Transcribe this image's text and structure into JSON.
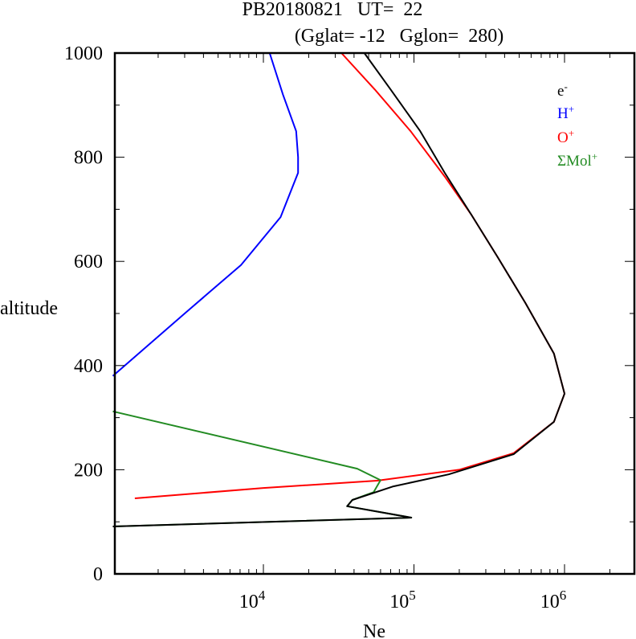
{
  "chart_data": {
    "type": "line",
    "title_line1": "PB20180821   UT=  22",
    "title_line2": "(Gglat= -12   Gglon=  280)",
    "xlabel": "Ne",
    "ylabel": "altitude",
    "xscale": "log",
    "xlim": [
      1000,
      3000000
    ],
    "ylim": [
      0,
      1000
    ],
    "x_tick_labels": [
      {
        "base": "10",
        "exp": "4",
        "value": 10000
      },
      {
        "base": "10",
        "exp": "5",
        "value": 100000
      },
      {
        "base": "10",
        "exp": "6",
        "value": 1000000
      }
    ],
    "y_ticks": [
      0,
      200,
      400,
      600,
      800,
      1000
    ],
    "y_tick_labels": [
      "0",
      "200",
      "400",
      "600",
      "800",
      "1000"
    ],
    "y_minor_ticks": [
      100,
      300,
      500,
      700,
      900
    ],
    "grid": false,
    "legend_position": "top-right",
    "series": [
      {
        "name": "e-",
        "label_base": "e",
        "label_sup": "-",
        "color": "#000000",
        "points": [
          [
            46800,
            1000
          ],
          [
            70000,
            930
          ],
          [
            110000,
            850
          ],
          [
            160000,
            770
          ],
          [
            240000,
            690
          ],
          [
            360000,
            608
          ],
          [
            550000,
            520
          ],
          [
            850000,
            423
          ],
          [
            1000000,
            346
          ],
          [
            850000,
            292
          ],
          [
            460000,
            230
          ],
          [
            170000,
            191
          ],
          [
            73000,
            168
          ],
          [
            39000,
            142
          ],
          [
            36000,
            130
          ],
          [
            96000,
            108
          ],
          [
            1000,
            91
          ]
        ]
      },
      {
        "name": "H+",
        "label_base": "H",
        "label_sup": "+",
        "color": "#0000ff",
        "points": [
          [
            11000,
            1000
          ],
          [
            13500,
            920
          ],
          [
            16500,
            850
          ],
          [
            17000,
            800
          ],
          [
            17000,
            770
          ],
          [
            13000,
            685
          ],
          [
            7100,
            593
          ],
          [
            3000,
            500
          ],
          [
            1000,
            380
          ]
        ]
      },
      {
        "name": "O+",
        "label_base": "O",
        "label_sup": "+",
        "color": "#ff0000",
        "points": [
          [
            33000,
            1000
          ],
          [
            55000,
            930
          ],
          [
            95000,
            850
          ],
          [
            160000,
            763
          ],
          [
            240000,
            690
          ],
          [
            360000,
            608
          ],
          [
            550000,
            520
          ],
          [
            850000,
            423
          ],
          [
            1000000,
            346
          ],
          [
            850000,
            292
          ],
          [
            460000,
            232
          ],
          [
            200000,
            200
          ],
          [
            57000,
            179
          ],
          [
            10000,
            165
          ],
          [
            1400,
            145
          ]
        ]
      },
      {
        "name": "ΣMol+",
        "label_base": "ΣMol",
        "label_sup": "+",
        "color": "#228b22",
        "points": [
          [
            1000,
            312
          ],
          [
            42000,
            202
          ],
          [
            60000,
            180
          ],
          [
            54000,
            157
          ],
          [
            39000,
            142
          ],
          [
            36000,
            130
          ],
          [
            96000,
            108
          ],
          [
            1000,
            91
          ]
        ]
      }
    ]
  }
}
